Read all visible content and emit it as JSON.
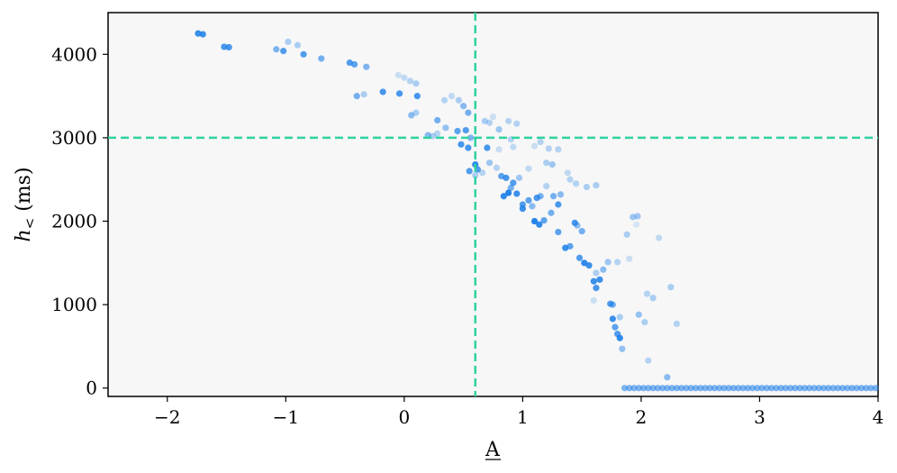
{
  "chart_data": {
    "type": "scatter",
    "title": "",
    "xlabel": "A",
    "ylabel": "h< (ms)",
    "ylabel_main": "h",
    "ylabel_sub": "<",
    "ylabel_unit": " (ms)",
    "xlim": [
      -2.5,
      4.0
    ],
    "ylim": [
      -100,
      4500
    ],
    "xticks": [
      -2,
      -1,
      0,
      1,
      2,
      3,
      4
    ],
    "xtick_labels": [
      "−2",
      "−1",
      "0",
      "1",
      "2",
      "3",
      "4"
    ],
    "yticks": [
      0,
      1000,
      2000,
      3000,
      4000
    ],
    "ytick_labels": [
      "0",
      "1000",
      "2000",
      "3000",
      "4000"
    ],
    "grid": false,
    "legend": "none",
    "reference_lines": {
      "vertical_x": 0.6,
      "horizontal_y": 3000
    },
    "colors": {
      "points": "#1a7ee8",
      "reference": "#2ed2a0",
      "plot_bg": "#f7f7f7"
    },
    "series": [
      {
        "points": [
          [
            -1.74,
            4250,
            0.85
          ],
          [
            -1.7,
            4240,
            0.85
          ],
          [
            -1.52,
            4090,
            0.8
          ],
          [
            -1.48,
            4085,
            0.8
          ],
          [
            -1.08,
            4060,
            0.55
          ],
          [
            -1.02,
            4040,
            0.75
          ],
          [
            -0.98,
            4150,
            0.35
          ],
          [
            -0.9,
            4110,
            0.35
          ],
          [
            -0.85,
            4000,
            0.75
          ],
          [
            -0.7,
            3950,
            0.6
          ],
          [
            -0.46,
            3900,
            0.75
          ],
          [
            -0.42,
            3880,
            0.7
          ],
          [
            -0.32,
            3850,
            0.55
          ],
          [
            -0.4,
            3500,
            0.6
          ],
          [
            -0.34,
            3520,
            0.35
          ],
          [
            -0.18,
            3550,
            0.8
          ],
          [
            -0.04,
            3530,
            0.8
          ],
          [
            -0.05,
            3750,
            0.2
          ],
          [
            0.0,
            3720,
            0.25
          ],
          [
            0.05,
            3680,
            0.3
          ],
          [
            0.1,
            3650,
            0.35
          ],
          [
            0.11,
            3500,
            0.8
          ],
          [
            0.06,
            3270,
            0.5
          ],
          [
            0.1,
            3300,
            0.35
          ],
          [
            0.2,
            3030,
            0.5
          ],
          [
            0.28,
            3210,
            0.6
          ],
          [
            0.34,
            3450,
            0.3
          ],
          [
            0.4,
            3500,
            0.25
          ],
          [
            0.46,
            3450,
            0.35
          ],
          [
            0.5,
            3380,
            0.5
          ],
          [
            0.54,
            3300,
            0.6
          ],
          [
            0.35,
            3120,
            0.45
          ],
          [
            0.45,
            3080,
            0.7
          ],
          [
            0.52,
            3090,
            0.75
          ],
          [
            0.56,
            3000,
            0.55
          ],
          [
            0.48,
            2920,
            0.8
          ],
          [
            0.54,
            2880,
            0.8
          ],
          [
            0.55,
            2600,
            0.75
          ],
          [
            0.6,
            2680,
            0.9
          ],
          [
            0.62,
            2620,
            0.75
          ],
          [
            0.7,
            2880,
            0.8
          ],
          [
            0.68,
            3200,
            0.35
          ],
          [
            0.72,
            3180,
            0.3
          ],
          [
            0.75,
            3250,
            0.2
          ],
          [
            0.8,
            3100,
            0.4
          ],
          [
            0.88,
            3200,
            0.3
          ],
          [
            0.95,
            3170,
            0.3
          ],
          [
            0.72,
            2700,
            0.4
          ],
          [
            0.78,
            2640,
            0.3
          ],
          [
            0.82,
            2540,
            0.7
          ],
          [
            0.86,
            2520,
            0.8
          ],
          [
            0.9,
            2400,
            0.6
          ],
          [
            0.84,
            2300,
            0.9
          ],
          [
            0.88,
            2340,
            0.95
          ],
          [
            0.95,
            2330,
            0.85
          ],
          [
            0.92,
            2460,
            0.75
          ],
          [
            0.97,
            2520,
            0.4
          ],
          [
            1.0,
            2200,
            0.75
          ],
          [
            1.0,
            2150,
            0.85
          ],
          [
            1.05,
            2250,
            0.7
          ],
          [
            1.08,
            2180,
            0.5
          ],
          [
            1.12,
            2280,
            0.8
          ],
          [
            1.15,
            2300,
            0.6
          ],
          [
            1.1,
            2000,
            0.95
          ],
          [
            1.14,
            1960,
            0.9
          ],
          [
            1.18,
            2010,
            0.7
          ],
          [
            1.24,
            2100,
            0.6
          ],
          [
            1.2,
            2420,
            0.3
          ],
          [
            1.26,
            2300,
            0.6
          ],
          [
            1.3,
            2200,
            0.8
          ],
          [
            1.32,
            2320,
            0.5
          ],
          [
            1.3,
            1870,
            0.7
          ],
          [
            1.36,
            1680,
            0.85
          ],
          [
            1.4,
            1700,
            0.7
          ],
          [
            1.44,
            1980,
            0.8
          ],
          [
            1.46,
            1950,
            0.5
          ],
          [
            1.5,
            1880,
            0.6
          ],
          [
            1.48,
            1560,
            0.75
          ],
          [
            1.52,
            1500,
            0.9
          ],
          [
            1.56,
            1470,
            0.85
          ],
          [
            1.6,
            1280,
            0.85
          ],
          [
            1.62,
            1200,
            0.8
          ],
          [
            1.65,
            1300,
            0.85
          ],
          [
            1.68,
            1420,
            0.5
          ],
          [
            1.62,
            1380,
            0.35
          ],
          [
            1.74,
            1010,
            0.75
          ],
          [
            1.76,
            1000,
            0.6
          ],
          [
            1.76,
            830,
            0.85
          ],
          [
            1.78,
            730,
            0.7
          ],
          [
            1.8,
            650,
            0.75
          ],
          [
            1.82,
            600,
            0.9
          ],
          [
            1.84,
            470,
            0.45
          ],
          [
            1.82,
            850,
            0.35
          ],
          [
            1.2,
            2700,
            0.35
          ],
          [
            1.22,
            2870,
            0.3
          ],
          [
            1.25,
            2680,
            0.4
          ],
          [
            1.3,
            2860,
            0.3
          ],
          [
            1.38,
            2580,
            0.25
          ],
          [
            1.4,
            2500,
            0.3
          ],
          [
            1.45,
            2450,
            0.3
          ],
          [
            1.54,
            2410,
            0.35
          ],
          [
            1.62,
            2430,
            0.35
          ],
          [
            1.72,
            1510,
            0.4
          ],
          [
            1.8,
            1510,
            0.3
          ],
          [
            1.88,
            1840,
            0.35
          ],
          [
            1.93,
            2050,
            0.4
          ],
          [
            1.97,
            2060,
            0.4
          ],
          [
            1.98,
            880,
            0.45
          ],
          [
            2.03,
            790,
            0.35
          ],
          [
            2.05,
            1130,
            0.3
          ],
          [
            2.1,
            1080,
            0.35
          ],
          [
            2.15,
            1800,
            0.25
          ],
          [
            2.25,
            1210,
            0.35
          ],
          [
            2.3,
            770,
            0.3
          ],
          [
            2.22,
            130,
            0.5
          ],
          [
            2.06,
            330,
            0.3
          ],
          [
            1.96,
            1960,
            0.15
          ],
          [
            1.6,
            1050,
            0.2
          ],
          [
            1.9,
            1550,
            0.2
          ],
          [
            0.9,
            2980,
            0.3
          ],
          [
            0.92,
            2890,
            0.25
          ],
          [
            1.15,
            2950,
            0.3
          ],
          [
            1.1,
            2900,
            0.2
          ],
          [
            0.6,
            2550,
            0.35
          ],
          [
            0.66,
            2580,
            0.3
          ],
          [
            1.05,
            2630,
            0.25
          ],
          [
            0.8,
            2860,
            0.2
          ],
          [
            0.28,
            3050,
            0.3
          ],
          [
            0.24,
            3020,
            0.35
          ]
        ],
        "zero_band": {
          "y": 0,
          "x_values": [
            1.86,
            1.9,
            1.94,
            1.98,
            2.02,
            2.06,
            2.1,
            2.14,
            2.18,
            2.22,
            2.26,
            2.3,
            2.34,
            2.38,
            2.42,
            2.46,
            2.5,
            2.54,
            2.58,
            2.62,
            2.66,
            2.7,
            2.74,
            2.78,
            2.82,
            2.86,
            2.9,
            2.94,
            2.98,
            3.02,
            3.06,
            3.1,
            3.14,
            3.18,
            3.22,
            3.26,
            3.3,
            3.34,
            3.38,
            3.42,
            3.46,
            3.5,
            3.54,
            3.58,
            3.62,
            3.66,
            3.7,
            3.74,
            3.78,
            3.82,
            3.86,
            3.9,
            3.94,
            3.98
          ]
        }
      }
    ]
  }
}
